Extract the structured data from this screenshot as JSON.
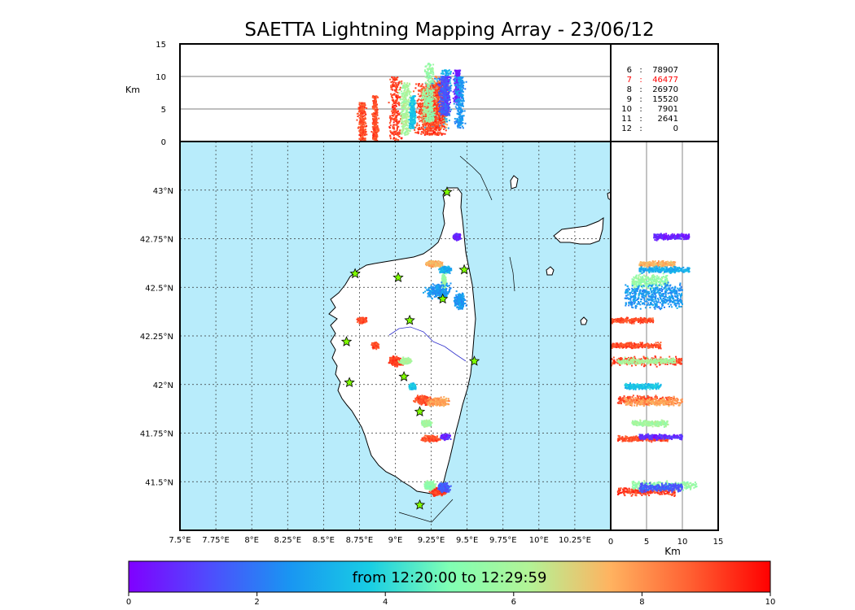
{
  "chart_data": {
    "type": "scatter",
    "title": "SAETTA Lightning Mapping Array - 23/06/12",
    "colorbar": {
      "label": "from 12:20:00 to 12:29:59",
      "range": [
        0,
        10
      ],
      "ticks": [
        "0",
        "2",
        "4",
        "6",
        "8",
        "10"
      ],
      "colormap": "rainbow"
    },
    "map": {
      "x_ticks": [
        "7.5°E",
        "7.75°E",
        "8°E",
        "8.25°E",
        "8.5°E",
        "8.75°E",
        "9°E",
        "9.25°E",
        "9.5°E",
        "9.75°E",
        "10°E",
        "10.25°E"
      ],
      "y_ticks": [
        "43°N",
        "42.75°N",
        "42.5°N",
        "42.25°N",
        "42°N",
        "41.75°N",
        "41.5°N"
      ],
      "xlim": [
        7.5,
        10.5
      ],
      "ylim": [
        41.25,
        43.25
      ],
      "grid": true,
      "ocean_color": "#b8ecfb",
      "land_color": "#ffffff"
    },
    "altitude_panel": {
      "ylabel": "Km",
      "y_ticks": [
        "0",
        "5",
        "10",
        "15"
      ],
      "ylim": [
        0,
        15
      ]
    },
    "latitude_altitude_panel": {
      "xlabel": "Km",
      "x_ticks": [
        "0",
        "5",
        "10",
        "15"
      ],
      "xlim": [
        0,
        15
      ]
    },
    "hourly_counts": [
      {
        "hour": "6",
        "count": "78907",
        "highlight": false
      },
      {
        "hour": "7",
        "count": "46477",
        "highlight": true
      },
      {
        "hour": "8",
        "count": "26970",
        "highlight": false
      },
      {
        "hour": "9",
        "count": "15520",
        "highlight": false
      },
      {
        "hour": "10",
        "count": "7901",
        "highlight": false
      },
      {
        "hour": "11",
        "count": "2641",
        "highlight": false
      },
      {
        "hour": "12",
        "count": "0",
        "highlight": false
      }
    ],
    "stations": [
      {
        "lon": 9.36,
        "lat": 42.99
      },
      {
        "lon": 8.72,
        "lat": 42.57
      },
      {
        "lon": 9.02,
        "lat": 42.55
      },
      {
        "lon": 9.48,
        "lat": 42.59
      },
      {
        "lon": 9.33,
        "lat": 42.44
      },
      {
        "lon": 9.1,
        "lat": 42.33
      },
      {
        "lon": 8.66,
        "lat": 42.22
      },
      {
        "lon": 9.55,
        "lat": 42.12
      },
      {
        "lon": 9.06,
        "lat": 42.04
      },
      {
        "lon": 8.68,
        "lat": 42.01
      },
      {
        "lon": 9.17,
        "lat": 41.86
      },
      {
        "lon": 9.17,
        "lat": 41.38
      }
    ],
    "storm_cells": [
      {
        "lon": 9.43,
        "lat": 42.76,
        "rlon": 0.03,
        "rlat": 0.02,
        "t": 0.5,
        "zmin": 6,
        "zmax": 11
      },
      {
        "lon": 9.27,
        "lat": 42.62,
        "rlon": 0.07,
        "rlat": 0.02,
        "t": 7.5,
        "zmin": 4,
        "zmax": 9
      },
      {
        "lon": 9.35,
        "lat": 42.59,
        "rlon": 0.05,
        "rlat": 0.02,
        "t": 3.0,
        "zmin": 4,
        "zmax": 11
      },
      {
        "lon": 9.34,
        "lat": 42.53,
        "rlon": 0.02,
        "rlat": 0.05,
        "t": 5.5,
        "zmin": 3,
        "zmax": 8
      },
      {
        "lon": 9.3,
        "lat": 42.48,
        "rlon": 0.12,
        "rlat": 0.05,
        "t": 2.6,
        "zmin": 2,
        "zmax": 10
      },
      {
        "lon": 9.45,
        "lat": 42.43,
        "rlon": 0.05,
        "rlat": 0.06,
        "t": 2.6,
        "zmin": 2,
        "zmax": 10
      },
      {
        "lon": 8.77,
        "lat": 42.33,
        "rlon": 0.04,
        "rlat": 0.02,
        "t": 9.0,
        "zmin": 0,
        "zmax": 6
      },
      {
        "lon": 8.86,
        "lat": 42.2,
        "rlon": 0.03,
        "rlat": 0.02,
        "t": 9.0,
        "zmin": 0,
        "zmax": 7
      },
      {
        "lon": 9.0,
        "lat": 42.12,
        "rlon": 0.06,
        "rlat": 0.03,
        "t": 9.2,
        "zmin": 0,
        "zmax": 10
      },
      {
        "lon": 9.07,
        "lat": 42.12,
        "rlon": 0.05,
        "rlat": 0.02,
        "t": 6.0,
        "zmin": 1,
        "zmax": 9
      },
      {
        "lon": 9.12,
        "lat": 41.99,
        "rlon": 0.03,
        "rlat": 0.02,
        "t": 3.5,
        "zmin": 2,
        "zmax": 7
      },
      {
        "lon": 9.2,
        "lat": 41.92,
        "rlon": 0.08,
        "rlat": 0.03,
        "t": 9.0,
        "zmin": 1,
        "zmax": 9
      },
      {
        "lon": 9.3,
        "lat": 41.91,
        "rlon": 0.1,
        "rlat": 0.03,
        "t": 7.8,
        "zmin": 2,
        "zmax": 10
      },
      {
        "lon": 9.22,
        "lat": 41.8,
        "rlon": 0.04,
        "rlat": 0.02,
        "t": 5.8,
        "zmin": 3,
        "zmax": 8
      },
      {
        "lon": 9.25,
        "lat": 41.72,
        "rlon": 0.08,
        "rlat": 0.02,
        "t": 9.0,
        "zmin": 1,
        "zmax": 8
      },
      {
        "lon": 9.35,
        "lat": 41.73,
        "rlon": 0.04,
        "rlat": 0.02,
        "t": 0.8,
        "zmin": 4,
        "zmax": 10
      },
      {
        "lon": 9.3,
        "lat": 41.45,
        "rlon": 0.07,
        "rlat": 0.03,
        "t": 9.2,
        "zmin": 1,
        "zmax": 9
      },
      {
        "lon": 9.24,
        "lat": 41.48,
        "rlon": 0.05,
        "rlat": 0.03,
        "t": 5.5,
        "zmin": 3,
        "zmax": 12
      },
      {
        "lon": 9.34,
        "lat": 41.47,
        "rlon": 0.05,
        "rlat": 0.03,
        "t": 1.5,
        "zmin": 4,
        "zmax": 10
      }
    ]
  }
}
